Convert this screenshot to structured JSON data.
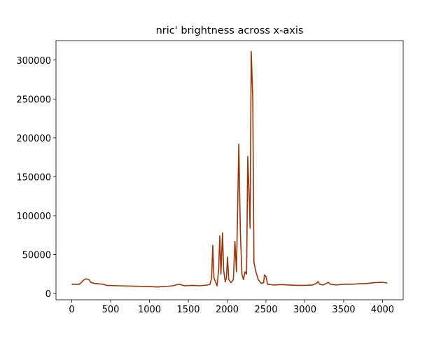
{
  "chart_data": {
    "type": "line",
    "title": "nric' brightness across x-axis",
    "x": [
      0,
      100,
      150,
      180,
      220,
      250,
      300,
      400,
      450,
      600,
      800,
      1000,
      1100,
      1200,
      1300,
      1380,
      1450,
      1550,
      1650,
      1750,
      1780,
      1800,
      1815,
      1830,
      1850,
      1870,
      1890,
      1905,
      1920,
      1940,
      1955,
      1975,
      1990,
      2005,
      2020,
      2050,
      2080,
      2100,
      2120,
      2150,
      2170,
      2190,
      2210,
      2230,
      2250,
      2265,
      2285,
      2295,
      2310,
      2330,
      2345,
      2370,
      2400,
      2440,
      2470,
      2480,
      2500,
      2520,
      2600,
      2700,
      2800,
      2900,
      3000,
      3100,
      3150,
      3170,
      3190,
      3230,
      3280,
      3300,
      3330,
      3400,
      3500,
      3600,
      3700,
      3800,
      3900,
      4000,
      4063
    ],
    "series": [
      {
        "name": "brightness",
        "color": "#9a3409",
        "values": [
          12000,
          12000,
          17000,
          19000,
          18000,
          14000,
          13000,
          12000,
          10500,
          10000,
          9500,
          9000,
          8500,
          9000,
          10000,
          12000,
          10000,
          10500,
          10000,
          11000,
          12000,
          20000,
          62000,
          20000,
          15000,
          10000,
          30000,
          74000,
          25000,
          78000,
          30000,
          15000,
          20000,
          47000,
          18000,
          14000,
          18000,
          67000,
          28000,
          192000,
          80000,
          25000,
          18000,
          28000,
          25000,
          176000,
          120000,
          84000,
          311000,
          250000,
          40000,
          28000,
          18000,
          13000,
          14000,
          24000,
          22000,
          12000,
          11000,
          11500,
          11000,
          10500,
          10500,
          11000,
          13000,
          15500,
          12000,
          11000,
          13000,
          14500,
          12000,
          11000,
          12000,
          12000,
          12500,
          13000,
          14000,
          14500,
          13500
        ]
      }
    ],
    "xlim": [
      -203,
      4266
    ],
    "ylim": [
      -8000,
      325000
    ],
    "xticks": [
      0,
      500,
      1000,
      1500,
      2000,
      2500,
      3000,
      3500,
      4000
    ],
    "yticks": [
      0,
      50000,
      100000,
      150000,
      200000,
      250000,
      300000
    ]
  }
}
